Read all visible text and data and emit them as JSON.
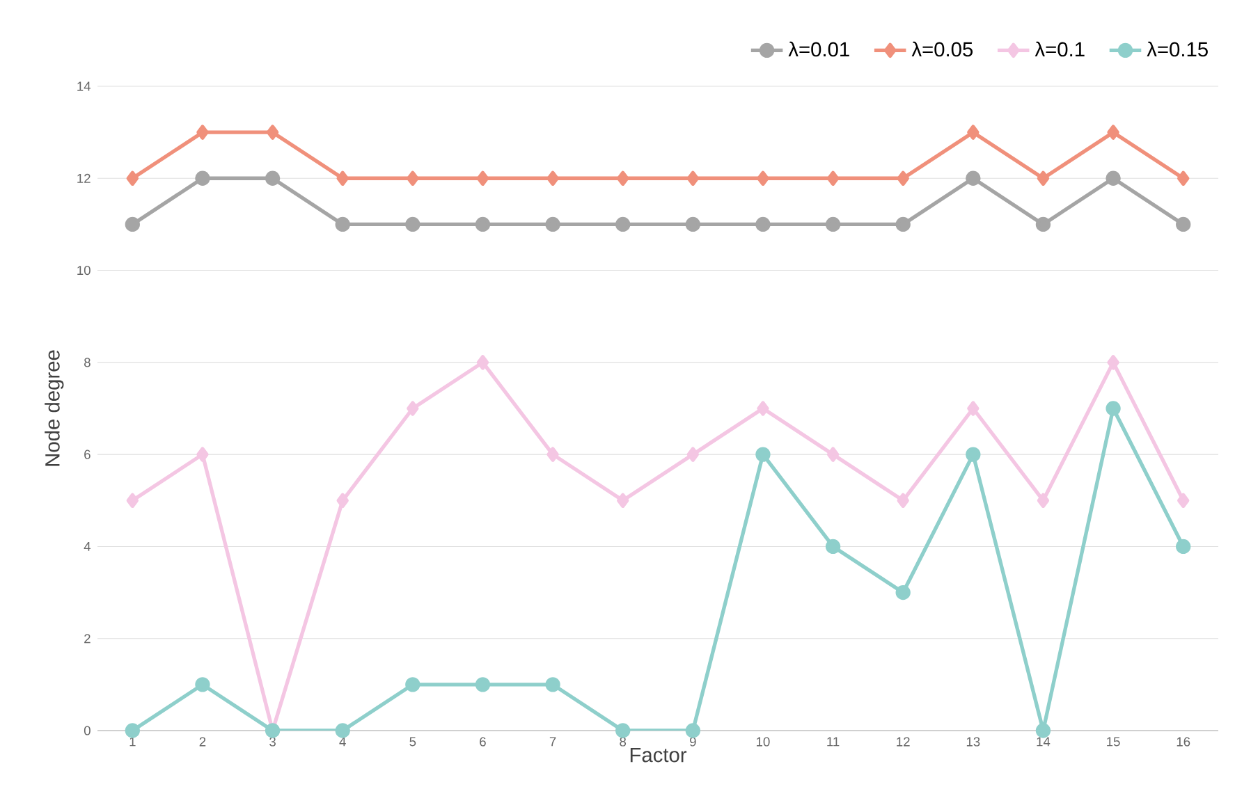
{
  "chart_data": {
    "type": "line",
    "xlabel": "Factor",
    "ylabel": "Node degree",
    "categories": [
      "1",
      "2",
      "3",
      "4",
      "5",
      "6",
      "7",
      "8",
      "9",
      "10",
      "11",
      "12",
      "13",
      "14",
      "15",
      "16"
    ],
    "ylim": [
      0,
      14
    ],
    "yticks": [
      0,
      2,
      4,
      6,
      8,
      10,
      12,
      14
    ],
    "grid": "y",
    "legend": "top right",
    "line_style": "solid",
    "series": [
      {
        "name": "λ=0.01",
        "color": "#a5a5a5",
        "marker": "circle",
        "values": [
          11,
          12,
          12,
          11,
          11,
          11,
          11,
          11,
          11,
          11,
          11,
          11,
          12,
          11,
          12,
          11
        ]
      },
      {
        "name": "λ=0.05",
        "color": "#f0907b",
        "marker": "diamond",
        "values": [
          12,
          13,
          13,
          12,
          12,
          12,
          12,
          12,
          12,
          12,
          12,
          12,
          13,
          12,
          13,
          12
        ]
      },
      {
        "name": "λ=0.1",
        "color": "#f4c6e3",
        "marker": "diamond",
        "values": [
          5,
          6,
          0,
          5,
          7,
          8,
          6,
          5,
          6,
          7,
          6,
          5,
          7,
          5,
          8,
          5
        ]
      },
      {
        "name": "λ=0.15",
        "color": "#8ecfcb",
        "marker": "circle",
        "values": [
          0,
          1,
          0,
          0,
          1,
          1,
          1,
          0,
          0,
          6,
          4,
          3,
          6,
          0,
          7,
          4
        ]
      }
    ]
  }
}
